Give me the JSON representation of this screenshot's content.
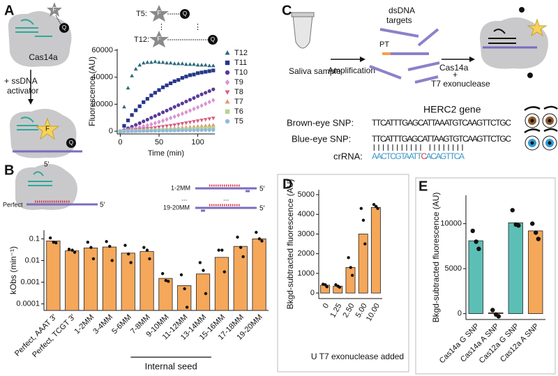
{
  "panel_labels": [
    "A",
    "B",
    "C",
    "D",
    "E"
  ],
  "schematic_a": {
    "protein": "Cas14a",
    "step": [
      "+ ssDNA",
      "activator"
    ],
    "fluorophore": "F",
    "quencher": "Q",
    "probe_first": "T5:",
    "probe_last": "T12:",
    "ellipsis": "⋮"
  },
  "schematic_b": {
    "five_prime": "5′",
    "perfect": "Perfect",
    "mm_first": "1-2MM",
    "mm_last": "19-20MM",
    "ellipsis": "..."
  },
  "diagram_c": {
    "saliva": "Saliva sample",
    "amplification": "Amplification",
    "targets": [
      "dsDNA",
      "targets"
    ],
    "pt": "PT",
    "enzymes": [
      "Cas14a",
      "+",
      "T7 exonuclease"
    ],
    "gene": "HERC2 gene",
    "rows": [
      {
        "label": "Brown-eye SNP:",
        "seq": "TTCATTTGAGCATTAAATGTCAAGTTCTGC"
      },
      {
        "label": "Blue-eye SNP:",
        "seq": "TTCATTTGAGCATTAAGTGTCAAGTTCTGC"
      }
    ],
    "crrna_label": "crRNA:",
    "crrna": [
      "AACTCGTAATT",
      "C",
      "ACAGTTCA"
    ]
  },
  "chart_data": [
    {
      "type": "scatter",
      "x_label": "Time (min)",
      "y_label": "Fluorescence (AU)",
      "xlim": [
        -4,
        122
      ],
      "xticks": [
        0,
        50,
        100
      ],
      "ylim": [
        -2000,
        61000
      ],
      "yticks": [
        0,
        20000,
        40000,
        60000
      ],
      "x": [
        0,
        5,
        10,
        15,
        20,
        25,
        30,
        35,
        40,
        45,
        50,
        55,
        60,
        65,
        70,
        75,
        80,
        85,
        90,
        95,
        100,
        105,
        110,
        115,
        120
      ],
      "series": [
        {
          "name": "T12",
          "color": "#2b6a7a",
          "marker": "triangle",
          "values": [
            0,
            18000,
            32000,
            41000,
            46000,
            49000,
            50500,
            51000,
            51000,
            51500,
            51000,
            51000,
            50500,
            50500,
            50000,
            50000,
            50000,
            49500,
            49500,
            49500,
            49000,
            49000,
            49000,
            48500,
            48500
          ]
        },
        {
          "name": "T11",
          "color": "#27368a",
          "marker": "square",
          "values": [
            0,
            4000,
            8000,
            12000,
            15500,
            18500,
            21500,
            24000,
            26500,
            28500,
            30500,
            32500,
            34000,
            35500,
            37000,
            38000,
            39500,
            40500,
            41500,
            42000,
            43000,
            43500,
            44000,
            44500,
            45000
          ]
        },
        {
          "name": "T10",
          "color": "#5a3a9a",
          "marker": "circle",
          "values": [
            0,
            1000,
            2200,
            3400,
            4700,
            6000,
            7300,
            8600,
            10000,
            11300,
            12600,
            14000,
            15300,
            16600,
            18000,
            19300,
            20600,
            22000,
            23300,
            24600,
            26000,
            27300,
            28500,
            29700,
            31000
          ]
        },
        {
          "name": "T9",
          "color": "#d994d2",
          "marker": "diamond",
          "values": [
            0,
            500,
            1000,
            1600,
            2200,
            2900,
            3600,
            4300,
            5100,
            6000,
            6900,
            7800,
            8800,
            9800,
            10800,
            11900,
            13000,
            14100,
            15300,
            16500,
            17700,
            19000,
            20300,
            21600,
            23000
          ]
        },
        {
          "name": "T8",
          "color": "#d45f85",
          "marker": "triangle-down",
          "values": [
            0,
            200,
            500,
            800,
            1100,
            1400,
            1700,
            2000,
            2300,
            2700,
            3100,
            3500,
            3900,
            4300,
            4700,
            5200,
            5700,
            6200,
            6700,
            7200,
            7700,
            8200,
            8700,
            9200,
            9700
          ]
        },
        {
          "name": "T7",
          "color": "#e8937a",
          "marker": "triangle",
          "values": [
            0,
            100,
            250,
            400,
            550,
            700,
            850,
            1000,
            1150,
            1300,
            1500,
            1700,
            1900,
            2100,
            2300,
            2500,
            2700,
            2900,
            3100,
            3350,
            3600,
            3850,
            4100,
            4350,
            4600
          ]
        },
        {
          "name": "T6",
          "color": "#b6d48c",
          "marker": "square",
          "values": [
            0,
            50,
            120,
            200,
            280,
            360,
            440,
            520,
            600,
            700,
            800,
            900,
            1000,
            1100,
            1200,
            1300,
            1400,
            1500,
            1600,
            1750,
            1900,
            2050,
            2200,
            2350,
            2500
          ]
        },
        {
          "name": "T5",
          "color": "#8fb9e2",
          "marker": "circle",
          "values": [
            0,
            30,
            60,
            90,
            130,
            170,
            210,
            250,
            290,
            330,
            370,
            410,
            450,
            490,
            530,
            570,
            610,
            650,
            690,
            730,
            770,
            810,
            860,
            910,
            960
          ]
        }
      ]
    },
    {
      "type": "bar",
      "y_label": "kObs (min⁻¹)",
      "annotation": "Internal seed",
      "log_scale": true,
      "color": "#f5a75a",
      "ylim": [
        5e-05,
        0.25
      ],
      "yticks": [
        0.0001,
        0.001,
        0.01,
        0.1
      ],
      "categories": [
        "Perfect, AAAT 3'",
        "Perfect, TCGT 3'",
        "1-2MM",
        "3-4MM",
        "5-6MM",
        "7-8MM",
        "9-10MM",
        "11-12MM",
        "13-14MM",
        "15-16MM",
        "17-18MM",
        "19-20MM"
      ],
      "values": [
        0.08,
        0.028,
        0.038,
        0.042,
        0.022,
        0.026,
        0.0015,
        0.0007,
        0.0024,
        0.014,
        0.045,
        0.1
      ],
      "points": [
        [
          0.11,
          0.07,
          0.065
        ],
        [
          0.033,
          0.03,
          0.024
        ],
        [
          0.07,
          0.04,
          0.012
        ],
        [
          0.075,
          0.045,
          0.01
        ],
        [
          0.05,
          0.02,
          0.008
        ],
        [
          0.04,
          0.03,
          0.012
        ],
        [
          0.0025,
          0.0012,
          0.0011
        ],
        [
          0.0022,
          0.0005,
          7e-05
        ],
        [
          0.008,
          0.0035,
          0.0003
        ],
        [
          0.03,
          0.03,
          0.003
        ],
        [
          0.12,
          0.04,
          0.015
        ],
        [
          0.2,
          0.1,
          0.08
        ]
      ]
    },
    {
      "type": "bar",
      "x_label": "U T7 exonuclease added",
      "y_label": "Bkgd-subtracted fluorescence (AU)",
      "color": "#f5a75a",
      "ylim": [
        -280,
        5250
      ],
      "yticks": [
        0,
        1000,
        2000,
        3000,
        4000,
        5000
      ],
      "categories": [
        "0",
        "1.25",
        "2.50",
        "5.00",
        "10.00"
      ],
      "values": [
        400,
        350,
        1300,
        3000,
        4350
      ],
      "points": [
        [
          450,
          420,
          320
        ],
        [
          420,
          350,
          300
        ],
        [
          1800,
          1300,
          900
        ],
        [
          4300,
          3700,
          2500
        ],
        [
          4500,
          4400,
          4300
        ]
      ]
    },
    {
      "type": "bar",
      "y_label": "Bkgd-subtracted fluorescence (AU)",
      "colors": [
        "#5cbfb6",
        "#f5a75a",
        "#5cbfb6",
        "#f5a75a"
      ],
      "ylim": [
        -650,
        13150
      ],
      "yticks": [
        0,
        5000,
        10000
      ],
      "categories": [
        "Cas14a G SNP",
        "Cas14a A SNP",
        "Cas12a G SNP",
        "Cas12a A SNP"
      ],
      "values": [
        8100,
        100,
        10100,
        9200
      ],
      "points": [
        [
          9200,
          8000,
          7200
        ],
        [
          400,
          -100,
          -300
        ],
        [
          11500,
          9900,
          9800
        ],
        [
          10000,
          9000,
          8300
        ]
      ]
    }
  ]
}
